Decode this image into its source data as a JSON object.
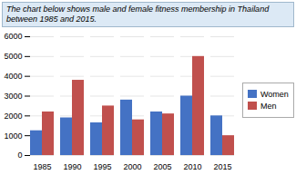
{
  "chart_data": {
    "type": "bar",
    "title": "The chart below shows male and female fitness membership in Thailand between 1985 and 2015.",
    "categories": [
      "1985",
      "1990",
      "1995",
      "2000",
      "2005",
      "2010",
      "2015"
    ],
    "series": [
      {
        "name": "Women",
        "color": "#4472C4",
        "values": [
          1250,
          1900,
          1650,
          2800,
          2200,
          3000,
          2000
        ]
      },
      {
        "name": "Men",
        "color": "#C0504D",
        "values": [
          2200,
          3800,
          2500,
          1800,
          2100,
          5000,
          1000
        ]
      }
    ],
    "ylim": [
      0,
      6000
    ],
    "yticks": [
      0,
      1000,
      2000,
      3000,
      4000,
      5000,
      6000
    ],
    "grid": true,
    "legend": "right"
  }
}
